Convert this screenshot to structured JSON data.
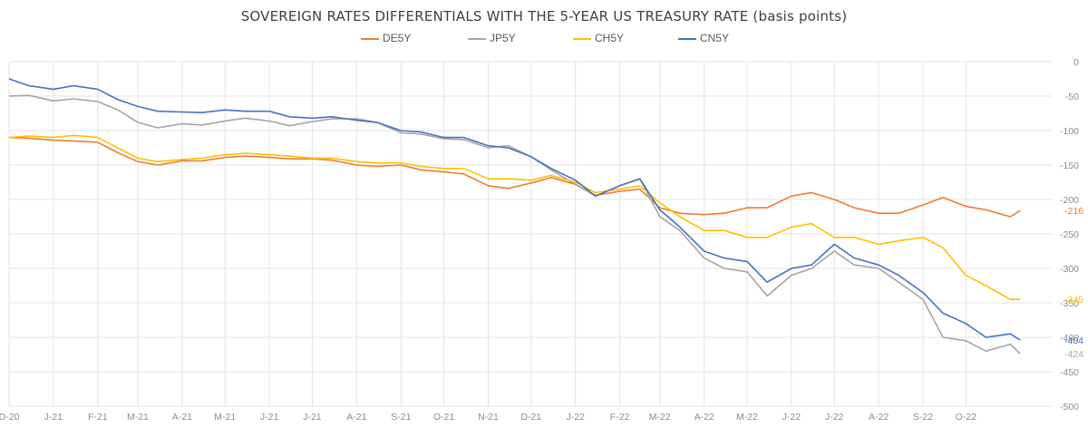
{
  "chart_data": {
    "type": "line",
    "title": "SOVEREIGN RATES DIFFERENTIALS WITH THE 5-YEAR US TREASURY RATE (basis points)",
    "xlabel": "",
    "ylabel": "",
    "ylim": [
      -500,
      0
    ],
    "yticks": [
      0,
      -50,
      -100,
      -150,
      -200,
      -250,
      -300,
      -350,
      -400,
      -450,
      -500
    ],
    "ytick_labels": [
      "0",
      "-50",
      "-100",
      "-150",
      "-200",
      "-250",
      "-300",
      "-350",
      "-400",
      "-450",
      "-500"
    ],
    "xlim": [
      "2020-12-01",
      "2022-11-30"
    ],
    "x_ticks": [
      {
        "date": "2020-12-01",
        "label": "D-20"
      },
      {
        "date": "2021-01-01",
        "label": "J-21"
      },
      {
        "date": "2021-02-01",
        "label": "F-21"
      },
      {
        "date": "2021-03-01",
        "label": "M-21"
      },
      {
        "date": "2021-04-01",
        "label": "A-21"
      },
      {
        "date": "2021-05-01",
        "label": "M-21"
      },
      {
        "date": "2021-06-01",
        "label": "J-21"
      },
      {
        "date": "2021-07-01",
        "label": "J-21"
      },
      {
        "date": "2021-08-01",
        "label": "A-21"
      },
      {
        "date": "2021-09-01",
        "label": "S-21"
      },
      {
        "date": "2021-10-01",
        "label": "O-21"
      },
      {
        "date": "2021-11-01",
        "label": "N-21"
      },
      {
        "date": "2021-12-01",
        "label": "D-21"
      },
      {
        "date": "2022-01-01",
        "label": "J-22"
      },
      {
        "date": "2022-02-01",
        "label": "F-22"
      },
      {
        "date": "2022-03-01",
        "label": "M-22"
      },
      {
        "date": "2022-04-01",
        "label": "A-22"
      },
      {
        "date": "2022-05-01",
        "label": "M-22"
      },
      {
        "date": "2022-06-01",
        "label": "J-22"
      },
      {
        "date": "2022-07-01",
        "label": "J-22"
      },
      {
        "date": "2022-08-01",
        "label": "A-22"
      },
      {
        "date": "2022-09-01",
        "label": "S-22"
      },
      {
        "date": "2022-10-01",
        "label": "O-22"
      }
    ],
    "grid": true,
    "legend_position": "top-center",
    "series": [
      {
        "name": "DE5Y",
        "color": "#ed7d31",
        "end_label": "-216",
        "points": [
          [
            "2020-12-01",
            -110
          ],
          [
            "2020-12-15",
            -111
          ],
          [
            "2021-01-01",
            -114
          ],
          [
            "2021-01-15",
            -115
          ],
          [
            "2021-02-01",
            -117
          ],
          [
            "2021-02-15",
            -132
          ],
          [
            "2021-03-01",
            -145
          ],
          [
            "2021-03-15",
            -150
          ],
          [
            "2021-04-01",
            -144
          ],
          [
            "2021-04-15",
            -144
          ],
          [
            "2021-05-01",
            -139
          ],
          [
            "2021-05-15",
            -137
          ],
          [
            "2021-06-01",
            -139
          ],
          [
            "2021-06-15",
            -141
          ],
          [
            "2021-07-01",
            -141
          ],
          [
            "2021-07-15",
            -143
          ],
          [
            "2021-08-01",
            -150
          ],
          [
            "2021-08-15",
            -152
          ],
          [
            "2021-09-01",
            -150
          ],
          [
            "2021-09-15",
            -157
          ],
          [
            "2021-10-01",
            -160
          ],
          [
            "2021-10-15",
            -163
          ],
          [
            "2021-11-01",
            -180
          ],
          [
            "2021-11-15",
            -184
          ],
          [
            "2021-12-01",
            -176
          ],
          [
            "2021-12-15",
            -168
          ],
          [
            "2022-01-01",
            -178
          ],
          [
            "2022-01-15",
            -194
          ],
          [
            "2022-02-01",
            -188
          ],
          [
            "2022-02-15",
            -185
          ],
          [
            "2022-03-01",
            -212
          ],
          [
            "2022-03-15",
            -220
          ],
          [
            "2022-04-01",
            -222
          ],
          [
            "2022-04-15",
            -220
          ],
          [
            "2022-05-01",
            -212
          ],
          [
            "2022-05-15",
            -212
          ],
          [
            "2022-06-01",
            -195
          ],
          [
            "2022-06-15",
            -190
          ],
          [
            "2022-07-01",
            -200
          ],
          [
            "2022-07-15",
            -212
          ],
          [
            "2022-08-01",
            -220
          ],
          [
            "2022-08-15",
            -220
          ],
          [
            "2022-09-01",
            -208
          ],
          [
            "2022-09-15",
            -197
          ],
          [
            "2022-10-01",
            -210
          ],
          [
            "2022-10-15",
            -215
          ],
          [
            "2022-11-01",
            -225
          ],
          [
            "2022-11-08",
            -216
          ]
        ]
      },
      {
        "name": "JP5Y",
        "color": "#a5a5a5",
        "end_label": "-424",
        "points": [
          [
            "2020-12-01",
            -50
          ],
          [
            "2020-12-15",
            -49
          ],
          [
            "2021-01-01",
            -57
          ],
          [
            "2021-01-15",
            -54
          ],
          [
            "2021-02-01",
            -58
          ],
          [
            "2021-02-15",
            -70
          ],
          [
            "2021-03-01",
            -88
          ],
          [
            "2021-03-15",
            -96
          ],
          [
            "2021-04-01",
            -90
          ],
          [
            "2021-04-15",
            -92
          ],
          [
            "2021-05-01",
            -86
          ],
          [
            "2021-05-15",
            -82
          ],
          [
            "2021-06-01",
            -86
          ],
          [
            "2021-06-15",
            -93
          ],
          [
            "2021-07-01",
            -87
          ],
          [
            "2021-07-15",
            -83
          ],
          [
            "2021-08-01",
            -83
          ],
          [
            "2021-08-15",
            -88
          ],
          [
            "2021-09-01",
            -103
          ],
          [
            "2021-09-15",
            -105
          ],
          [
            "2021-10-01",
            -112
          ],
          [
            "2021-10-15",
            -113
          ],
          [
            "2021-11-01",
            -125
          ],
          [
            "2021-11-15",
            -122
          ],
          [
            "2021-12-01",
            -138
          ],
          [
            "2021-12-15",
            -157
          ],
          [
            "2022-01-01",
            -178
          ],
          [
            "2022-01-15",
            -195
          ],
          [
            "2022-02-01",
            -180
          ],
          [
            "2022-02-15",
            -170
          ],
          [
            "2022-03-01",
            -225
          ],
          [
            "2022-03-15",
            -245
          ],
          [
            "2022-04-01",
            -285
          ],
          [
            "2022-04-15",
            -300
          ],
          [
            "2022-05-01",
            -305
          ],
          [
            "2022-05-15",
            -340
          ],
          [
            "2022-06-01",
            -310
          ],
          [
            "2022-06-15",
            -300
          ],
          [
            "2022-07-01",
            -275
          ],
          [
            "2022-07-15",
            -295
          ],
          [
            "2022-08-01",
            -300
          ],
          [
            "2022-08-15",
            -320
          ],
          [
            "2022-09-01",
            -345
          ],
          [
            "2022-09-15",
            -400
          ],
          [
            "2022-10-01",
            -405
          ],
          [
            "2022-10-15",
            -420
          ],
          [
            "2022-11-01",
            -410
          ],
          [
            "2022-11-08",
            -424
          ]
        ]
      },
      {
        "name": "CH5Y",
        "color": "#ffc000",
        "end_label": "-345",
        "points": [
          [
            "2020-12-01",
            -110
          ],
          [
            "2020-12-15",
            -108
          ],
          [
            "2021-01-01",
            -110
          ],
          [
            "2021-01-15",
            -107
          ],
          [
            "2021-02-01",
            -110
          ],
          [
            "2021-02-15",
            -125
          ],
          [
            "2021-03-01",
            -140
          ],
          [
            "2021-03-15",
            -145
          ],
          [
            "2021-04-01",
            -142
          ],
          [
            "2021-04-15",
            -140
          ],
          [
            "2021-05-01",
            -135
          ],
          [
            "2021-05-15",
            -133
          ],
          [
            "2021-06-01",
            -135
          ],
          [
            "2021-06-15",
            -137
          ],
          [
            "2021-07-01",
            -140
          ],
          [
            "2021-07-15",
            -140
          ],
          [
            "2021-08-01",
            -145
          ],
          [
            "2021-08-15",
            -147
          ],
          [
            "2021-09-01",
            -147
          ],
          [
            "2021-09-15",
            -152
          ],
          [
            "2021-10-01",
            -155
          ],
          [
            "2021-10-15",
            -155
          ],
          [
            "2021-11-01",
            -170
          ],
          [
            "2021-11-15",
            -170
          ],
          [
            "2021-12-01",
            -172
          ],
          [
            "2021-12-15",
            -165
          ],
          [
            "2022-01-01",
            -175
          ],
          [
            "2022-01-15",
            -190
          ],
          [
            "2022-02-01",
            -185
          ],
          [
            "2022-02-15",
            -180
          ],
          [
            "2022-03-01",
            -205
          ],
          [
            "2022-03-15",
            -225
          ],
          [
            "2022-04-01",
            -245
          ],
          [
            "2022-04-15",
            -245
          ],
          [
            "2022-05-01",
            -255
          ],
          [
            "2022-05-15",
            -255
          ],
          [
            "2022-06-01",
            -240
          ],
          [
            "2022-06-15",
            -235
          ],
          [
            "2022-07-01",
            -255
          ],
          [
            "2022-07-15",
            -255
          ],
          [
            "2022-08-01",
            -265
          ],
          [
            "2022-08-15",
            -260
          ],
          [
            "2022-09-01",
            -255
          ],
          [
            "2022-09-15",
            -270
          ],
          [
            "2022-10-01",
            -310
          ],
          [
            "2022-10-15",
            -325
          ],
          [
            "2022-11-01",
            -345
          ],
          [
            "2022-11-08",
            -345
          ]
        ]
      },
      {
        "name": "CN5Y",
        "color": "#4472c4",
        "end_label": "-404",
        "points": [
          [
            "2020-12-01",
            -25
          ],
          [
            "2020-12-15",
            -35
          ],
          [
            "2021-01-01",
            -40
          ],
          [
            "2021-01-15",
            -35
          ],
          [
            "2021-02-01",
            -40
          ],
          [
            "2021-02-15",
            -55
          ],
          [
            "2021-03-01",
            -65
          ],
          [
            "2021-03-15",
            -72
          ],
          [
            "2021-04-01",
            -73
          ],
          [
            "2021-04-15",
            -74
          ],
          [
            "2021-05-01",
            -70
          ],
          [
            "2021-05-15",
            -72
          ],
          [
            "2021-06-01",
            -72
          ],
          [
            "2021-06-15",
            -80
          ],
          [
            "2021-07-01",
            -82
          ],
          [
            "2021-07-15",
            -80
          ],
          [
            "2021-08-01",
            -85
          ],
          [
            "2021-08-15",
            -88
          ],
          [
            "2021-09-01",
            -100
          ],
          [
            "2021-09-15",
            -102
          ],
          [
            "2021-10-01",
            -110
          ],
          [
            "2021-10-15",
            -110
          ],
          [
            "2021-11-01",
            -122
          ],
          [
            "2021-11-15",
            -125
          ],
          [
            "2021-12-01",
            -138
          ],
          [
            "2021-12-15",
            -155
          ],
          [
            "2022-01-01",
            -172
          ],
          [
            "2022-01-15",
            -195
          ],
          [
            "2022-02-01",
            -180
          ],
          [
            "2022-02-15",
            -170
          ],
          [
            "2022-03-01",
            -215
          ],
          [
            "2022-03-15",
            -240
          ],
          [
            "2022-04-01",
            -275
          ],
          [
            "2022-04-15",
            -285
          ],
          [
            "2022-05-01",
            -290
          ],
          [
            "2022-05-15",
            -320
          ],
          [
            "2022-06-01",
            -300
          ],
          [
            "2022-06-15",
            -295
          ],
          [
            "2022-07-01",
            -265
          ],
          [
            "2022-07-15",
            -285
          ],
          [
            "2022-08-01",
            -295
          ],
          [
            "2022-08-15",
            -310
          ],
          [
            "2022-09-01",
            -335
          ],
          [
            "2022-09-15",
            -365
          ],
          [
            "2022-10-01",
            -380
          ],
          [
            "2022-10-15",
            -400
          ],
          [
            "2022-11-01",
            -395
          ],
          [
            "2022-11-08",
            -404
          ]
        ]
      }
    ]
  }
}
